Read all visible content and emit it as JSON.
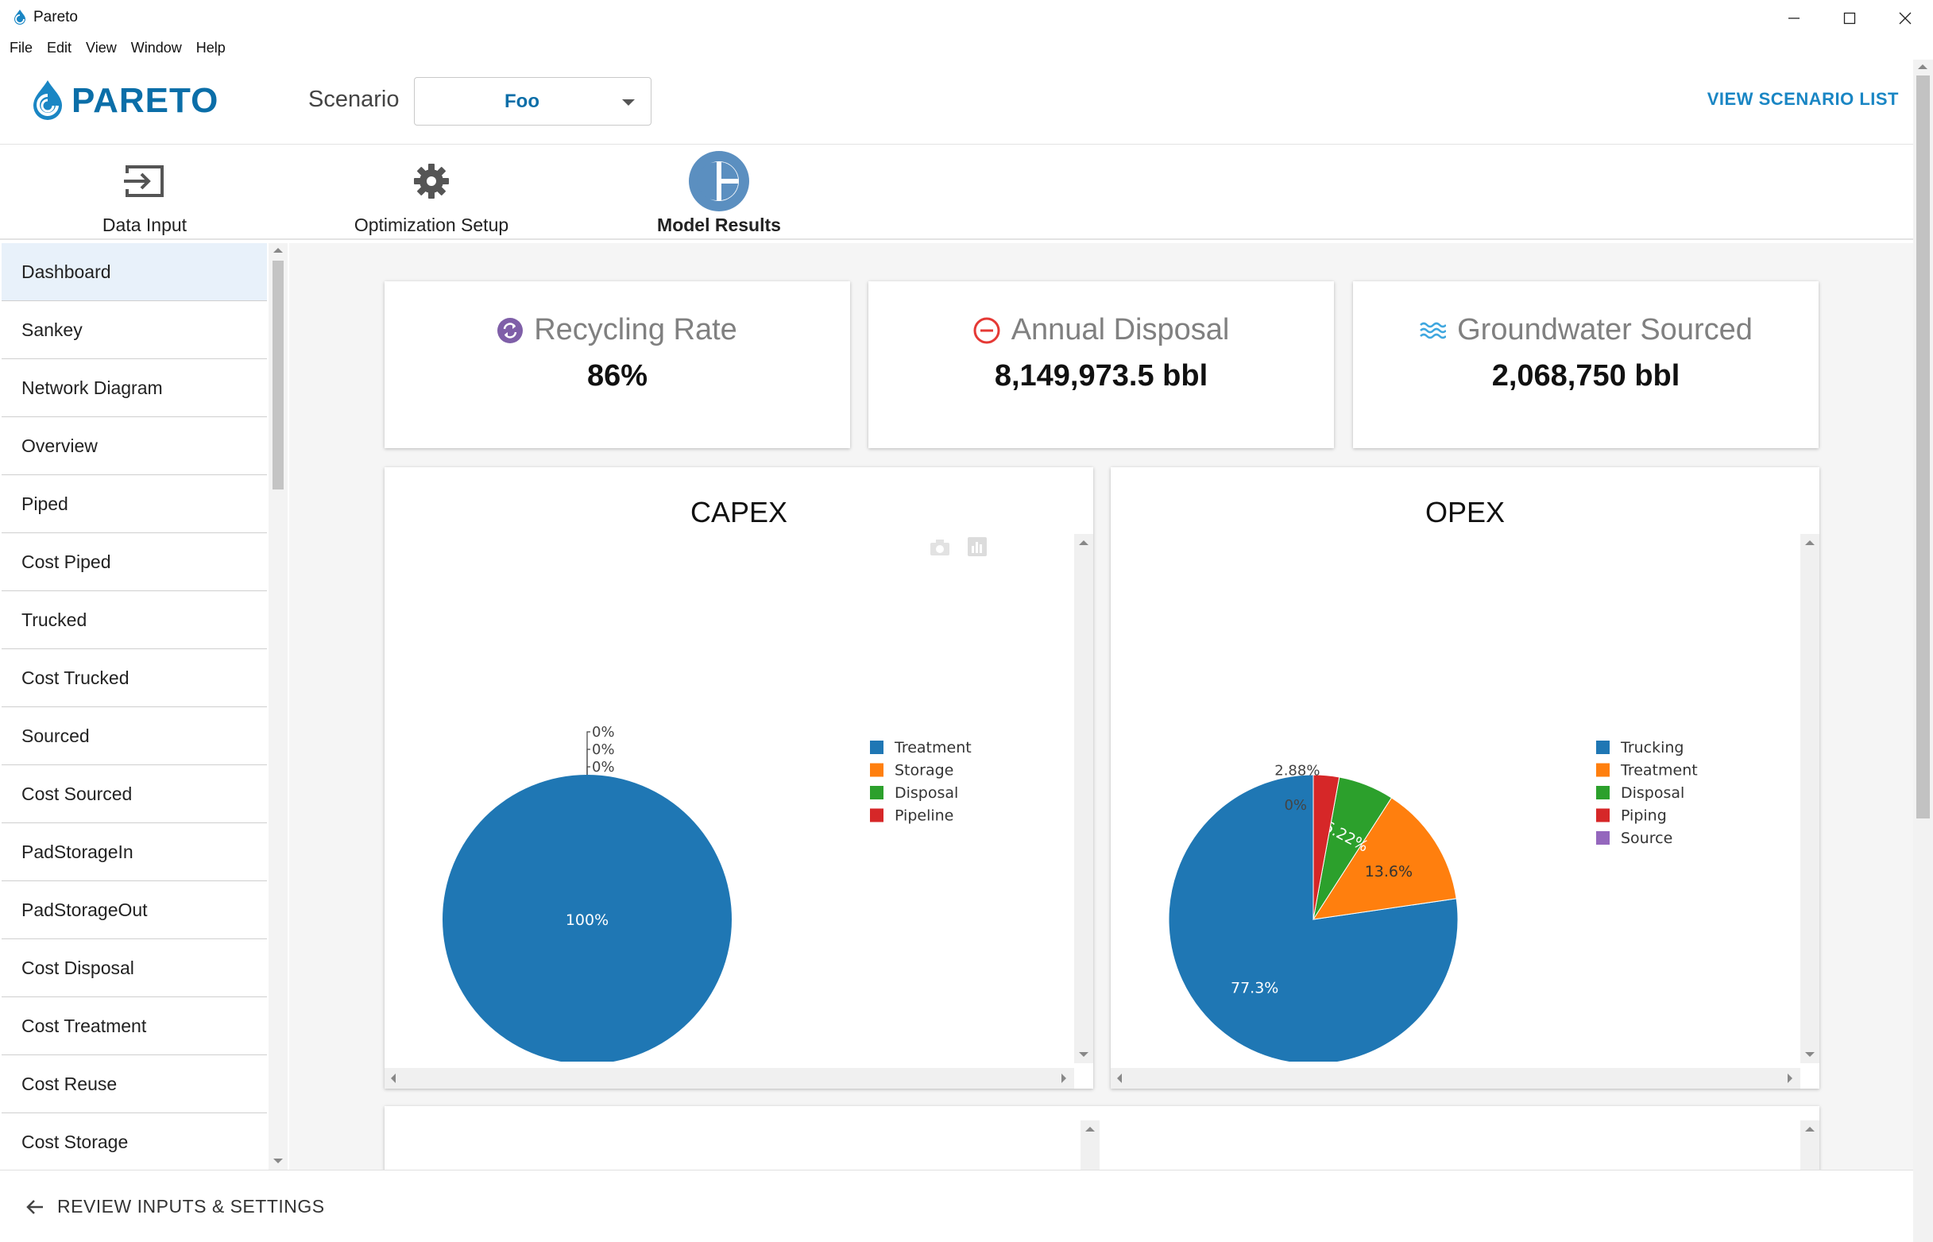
{
  "window": {
    "title": "Pareto"
  },
  "menu": [
    "File",
    "Edit",
    "View",
    "Window",
    "Help"
  ],
  "header": {
    "logo_text": "PARETO",
    "scenario_label": "Scenario",
    "scenario_value": "Foo",
    "view_list_label": "VIEW SCENARIO LIST",
    "brand_color": "#0b6ea8"
  },
  "tabs": [
    {
      "label": "Data Input",
      "icon": "sign-in-icon"
    },
    {
      "label": "Optimization Setup",
      "icon": "gear-icon"
    },
    {
      "label": "Model Results",
      "icon": "pie-chart-icon",
      "active": true
    }
  ],
  "sidebar": {
    "items": [
      "Dashboard",
      "Sankey",
      "Network Diagram",
      "Overview",
      "Piped",
      "Cost Piped",
      "Trucked",
      "Cost Trucked",
      "Sourced",
      "Cost Sourced",
      "PadStorageIn",
      "PadStorageOut",
      "Cost Disposal",
      "Cost Treatment",
      "Cost Reuse",
      "Cost Storage"
    ],
    "active": "Dashboard"
  },
  "kpis": [
    {
      "title": "Recycling Rate",
      "value": "86%",
      "icon": "recycle-icon",
      "color": "#7f5fa8"
    },
    {
      "title": "Annual Disposal",
      "value": "8,149,973.5 bbl",
      "icon": "minus-circle-icon",
      "color": "#e53935"
    },
    {
      "title": "Groundwater Sourced",
      "value": "2,068,750 bbl",
      "icon": "water-waves-icon",
      "color": "#3fa7df"
    }
  ],
  "chart_data": [
    {
      "type": "pie",
      "title": "CAPEX",
      "labels": [
        "Treatment",
        "Storage",
        "Disposal",
        "Pipeline"
      ],
      "values": [
        100,
        0,
        0,
        0
      ],
      "value_labels": [
        "100%",
        "0%",
        "0%",
        "0%"
      ],
      "colors": [
        "#1f77b4",
        "#ff7f0e",
        "#2ca02c",
        "#d62728"
      ],
      "legend": "right"
    },
    {
      "type": "pie",
      "title": "OPEX",
      "labels": [
        "Trucking",
        "Treatment",
        "Disposal",
        "Piping",
        "Source"
      ],
      "values": [
        77.3,
        13.6,
        6.22,
        2.88,
        0
      ],
      "value_labels": [
        "77.3%",
        "13.6%",
        "6.22%",
        "2.88%",
        "0%"
      ],
      "colors": [
        "#1f77b4",
        "#ff7f0e",
        "#2ca02c",
        "#d62728",
        "#9467bd"
      ],
      "legend": "right"
    }
  ],
  "footer": {
    "review_label": "REVIEW INPUTS & SETTINGS"
  }
}
